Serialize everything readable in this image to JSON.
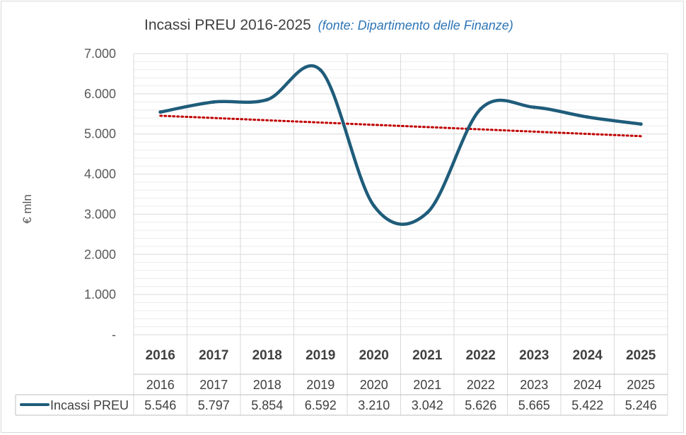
{
  "title": {
    "main": "Incassi PREU 2016-2025",
    "source": "(fonte: Dipartimento delle Finanze)"
  },
  "chart_data": {
    "type": "line",
    "title": "Incassi PREU 2016-2025",
    "subtitle": "(fonte: Dipartimento delle Finanze)",
    "ylabel": "€ mln",
    "xlabel": "",
    "categories": [
      "2016",
      "2017",
      "2018",
      "2019",
      "2020",
      "2021",
      "2022",
      "2023",
      "2024",
      "2025"
    ],
    "ylim": [
      0,
      7000
    ],
    "yticks": [
      0,
      1000,
      2000,
      3000,
      4000,
      5000,
      6000,
      7000
    ],
    "ytick_labels": [
      "-",
      "1.000",
      "2.000",
      "3.000",
      "4.000",
      "5.000",
      "6.000",
      "7.000"
    ],
    "grid": true,
    "series": [
      {
        "name": "Incassi PREU",
        "values": [
          5546,
          5797,
          5854,
          6592,
          3210,
          3042,
          5626,
          5665,
          5422,
          5246
        ],
        "value_labels": [
          "5.546",
          "5.797",
          "5.854",
          "6.592",
          "3.210",
          "3.042",
          "5.626",
          "5.665",
          "5.422",
          "5.246"
        ],
        "color": "#1f5c7a",
        "smooth": true
      }
    ],
    "trendline": {
      "type": "linear",
      "color": "#c00000",
      "style": "dotted"
    },
    "data_table": true
  }
}
